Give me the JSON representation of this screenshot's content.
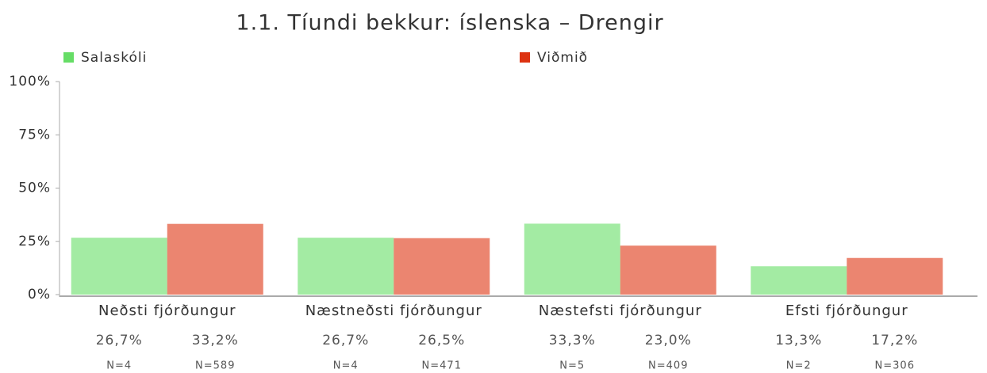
{
  "chart_data": {
    "type": "bar",
    "title": "1.1. Tíundi bekkur: íslenska – Drengir",
    "categories": [
      "Neðsti fjórðungur",
      "Næstneðsti fjórðungur",
      "Næstefsti fjórðungur",
      "Efsti fjórðungur"
    ],
    "series": [
      {
        "name": "Salaskóli",
        "color": "#66dd66",
        "values": [
          26.7,
          26.7,
          33.3,
          13.3
        ],
        "value_labels": [
          "26,7%",
          "26,7%",
          "33,3%",
          "13,3%"
        ],
        "n_labels": [
          "N=4",
          "N=4",
          "N=5",
          "N=2"
        ]
      },
      {
        "name": "Viðmið",
        "color": "#dd3311",
        "values": [
          33.2,
          26.5,
          23.0,
          17.2
        ],
        "value_labels": [
          "33,2%",
          "26,5%",
          "23,0%",
          "17,2%"
        ],
        "n_labels": [
          "N=589",
          "N=471",
          "N=409",
          "N=306"
        ]
      }
    ],
    "ylim": [
      0,
      100
    ],
    "yticks": [
      {
        "value": 0,
        "label": "0%"
      },
      {
        "value": 25,
        "label": "25%"
      },
      {
        "value": 50,
        "label": "50%"
      },
      {
        "value": 75,
        "label": "75%"
      },
      {
        "value": 100,
        "label": "100%"
      }
    ]
  }
}
